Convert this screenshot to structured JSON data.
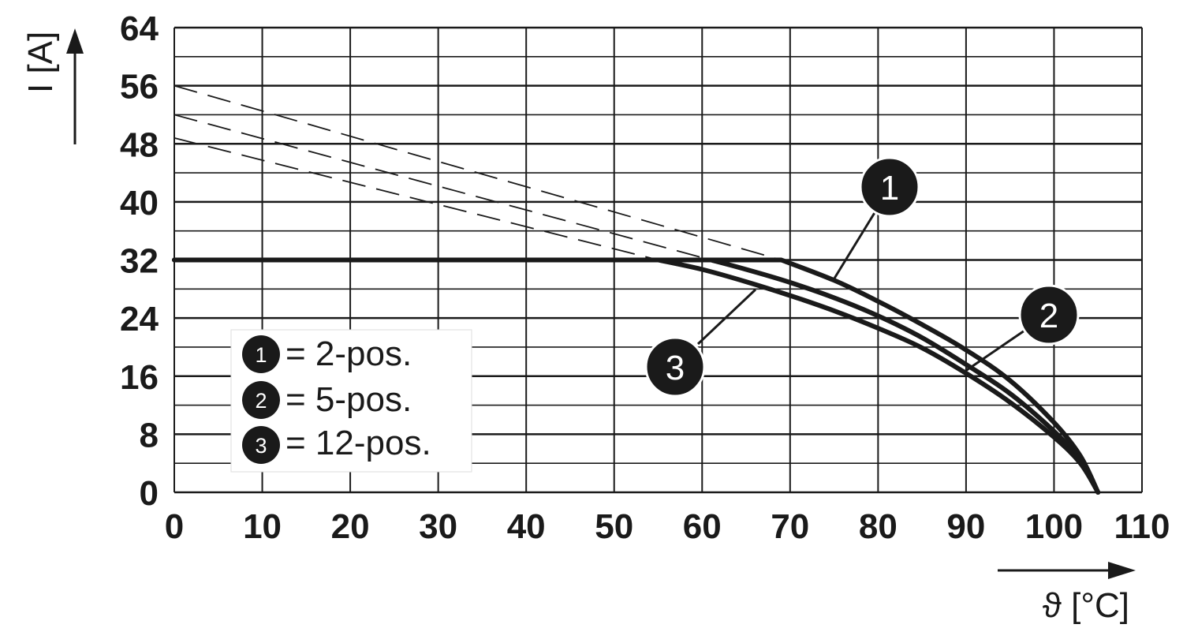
{
  "chart_data": {
    "type": "line",
    "xlabel": "ϑ [°C]",
    "ylabel": "I [A]",
    "xlim": [
      0,
      110
    ],
    "ylim": [
      0,
      64
    ],
    "x_ticks": [
      "0",
      "10",
      "20",
      "30",
      "40",
      "50",
      "60",
      "70",
      "80",
      "90",
      "100",
      "110"
    ],
    "y_ticks": [
      "64",
      "56",
      "48",
      "40",
      "32",
      "24",
      "16",
      "8",
      "0"
    ],
    "grid": true,
    "current_limit": 32,
    "series": [
      {
        "name": "2-pos.",
        "marker": "1",
        "x": [
          69,
          75,
          80,
          85,
          90,
          95,
          100,
          103,
          105
        ],
        "y": [
          32,
          29.2,
          26.3,
          23.1,
          19.6,
          15.4,
          9.6,
          5.0,
          0
        ],
        "extrapolated": {
          "x": [
            0,
            69
          ],
          "y": [
            56,
            32
          ]
        }
      },
      {
        "name": "5-pos.",
        "marker": "2",
        "x": [
          61,
          65,
          70,
          75,
          80,
          85,
          90,
          95,
          100,
          103,
          105
        ],
        "y": [
          32,
          30.7,
          28.9,
          26.8,
          24.3,
          21.3,
          17.6,
          13.6,
          8.4,
          4.4,
          0
        ],
        "extrapolated": {
          "x": [
            0,
            61
          ],
          "y": [
            52,
            32
          ]
        }
      },
      {
        "name": "12-pos.",
        "marker": "3",
        "x": [
          55,
          60,
          65,
          70,
          75,
          80,
          85,
          90,
          95,
          100,
          103,
          105
        ],
        "y": [
          32,
          30.7,
          29.0,
          27.1,
          25.0,
          22.6,
          19.9,
          16.4,
          12.4,
          7.6,
          4.0,
          0
        ],
        "extrapolated": {
          "x": [
            0,
            55
          ],
          "y": [
            48.8,
            32
          ]
        }
      }
    ],
    "legend": {
      "position": "bottom-left",
      "entries": [
        {
          "marker": "1",
          "text": "= 2-pos."
        },
        {
          "marker": "2",
          "text": "= 5-pos."
        },
        {
          "marker": "3",
          "text": "= 12-pos."
        }
      ]
    }
  }
}
